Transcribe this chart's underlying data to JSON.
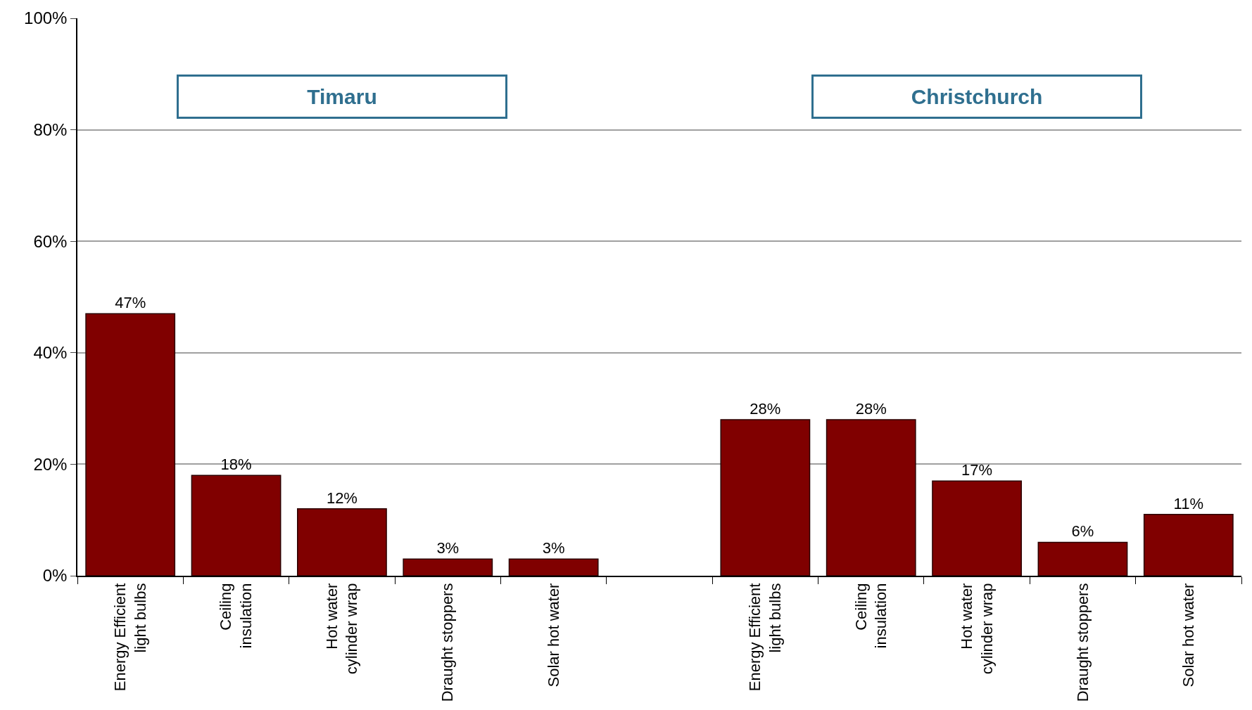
{
  "chart_data": {
    "type": "bar",
    "categories": [
      "Energy Efficient light bulbs",
      "Ceiling insulation",
      "Hot water cylinder wrap",
      "Draught stoppers",
      "Solar hot water",
      null,
      "Energy Efficient light bulbs",
      "Ceiling insulation",
      "Hot water cylinder wrap",
      "Draught stoppers",
      "Solar hot water"
    ],
    "values": [
      47,
      18,
      12,
      3,
      3,
      null,
      28,
      28,
      17,
      6,
      11
    ],
    "value_labels": [
      "47%",
      "18%",
      "12%",
      "3%",
      "3%",
      null,
      "28%",
      "28%",
      "17%",
      "6%",
      "11%"
    ],
    "color": "#800000",
    "ylim": [
      0,
      100
    ],
    "yticks": [
      {
        "value": 0,
        "label": "0%"
      },
      {
        "value": 20,
        "label": "20%"
      },
      {
        "value": 40,
        "label": "40%"
      },
      {
        "value": 60,
        "label": "60%"
      },
      {
        "value": 80,
        "label": "80%"
      },
      {
        "value": 100,
        "label": "100%"
      }
    ],
    "grid": "y",
    "legend": false,
    "annotations": [
      "Timaru",
      "Christchurch"
    ]
  }
}
